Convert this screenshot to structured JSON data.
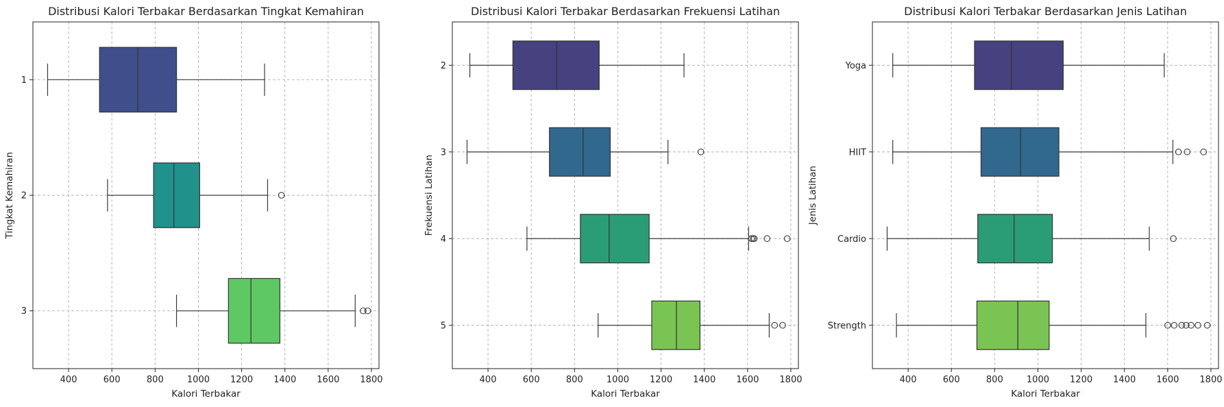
{
  "chart_data": [
    {
      "type": "boxplot",
      "orientation": "horizontal",
      "title": "Distribusi Kalori Terbakar Berdasarkan Tingkat Kemahiran",
      "xlabel": "Kalori Terbakar",
      "ylabel": "Tingkat Kemahiran",
      "xlim": [
        235,
        1835
      ],
      "xticks": [
        400,
        600,
        800,
        1000,
        1200,
        1400,
        1600,
        1800
      ],
      "grid": true,
      "categories": [
        "1",
        "2",
        "3"
      ],
      "colors": [
        "#3e4f8c",
        "#21918c",
        "#5ec962"
      ],
      "boxes": [
        {
          "category": "1",
          "whisker_low": 303,
          "q1": 543,
          "median": 720,
          "q3": 899,
          "whisker_high": 1306,
          "outliers": []
        },
        {
          "category": "2",
          "whisker_low": 580,
          "q1": 793,
          "median": 887,
          "q3": 1006,
          "whisker_high": 1320,
          "outliers": [
            1384
          ]
        },
        {
          "category": "3",
          "whisker_low": 899,
          "q1": 1139,
          "median": 1243,
          "q3": 1377,
          "whisker_high": 1725,
          "outliers": [
            1762,
            1783
          ]
        }
      ]
    },
    {
      "type": "boxplot",
      "orientation": "horizontal",
      "title": "Distribusi Kalori Terbakar Berdasarkan Frekuensi Latihan",
      "xlabel": "Kalori Terbakar",
      "ylabel": "Frekuensi Latihan",
      "xlim": [
        235,
        1835
      ],
      "xticks": [
        400,
        600,
        800,
        1000,
        1200,
        1400,
        1600,
        1800
      ],
      "grid": true,
      "categories": [
        "2",
        "3",
        "4",
        "5"
      ],
      "colors": [
        "#46417f",
        "#31688e",
        "#2a9d77",
        "#7ac453"
      ],
      "boxes": [
        {
          "category": "2",
          "whisker_low": 316,
          "q1": 515,
          "median": 718,
          "q3": 914,
          "whisker_high": 1306,
          "outliers": []
        },
        {
          "category": "3",
          "whisker_low": 303,
          "q1": 684,
          "median": 840,
          "q3": 965,
          "whisker_high": 1232,
          "outliers": [
            1384
          ]
        },
        {
          "category": "4",
          "whisker_low": 580,
          "q1": 827,
          "median": 960,
          "q3": 1145,
          "whisker_high": 1605,
          "outliers": [
            1618,
            1625,
            1631,
            1690,
            1783
          ]
        },
        {
          "category": "5",
          "whisker_low": 909,
          "q1": 1157,
          "median": 1271,
          "q3": 1380,
          "whisker_high": 1700,
          "outliers": [
            1725,
            1762
          ]
        }
      ]
    },
    {
      "type": "boxplot",
      "orientation": "horizontal",
      "title": "Distribusi Kalori Terbakar Berdasarkan Jenis Latihan",
      "xlabel": "Kalori Terbakar",
      "ylabel": "Jenis Latihan",
      "xlim": [
        235,
        1835
      ],
      "xticks": [
        400,
        600,
        800,
        1000,
        1200,
        1400,
        1600,
        1800
      ],
      "grid": true,
      "categories": [
        "Yoga",
        "HIIT",
        "Cardio",
        "Strength"
      ],
      "colors": [
        "#46417f",
        "#31688e",
        "#2a9d77",
        "#7ac453"
      ],
      "boxes": [
        {
          "category": "Yoga",
          "whisker_low": 329,
          "q1": 707,
          "median": 878,
          "q3": 1117,
          "whisker_high": 1584,
          "outliers": []
        },
        {
          "category": "HIIT",
          "whisker_low": 329,
          "q1": 737,
          "median": 920,
          "q3": 1097,
          "whisker_high": 1624,
          "outliers": [
            1650,
            1690,
            1766
          ]
        },
        {
          "category": "Cardio",
          "whisker_low": 303,
          "q1": 722,
          "median": 890,
          "q3": 1067,
          "whisker_high": 1515,
          "outliers": [
            1626
          ]
        },
        {
          "category": "Strength",
          "whisker_low": 346,
          "q1": 718,
          "median": 907,
          "q3": 1052,
          "whisker_high": 1499,
          "outliers": [
            1600,
            1630,
            1665,
            1685,
            1708,
            1740,
            1783
          ]
        }
      ]
    }
  ]
}
